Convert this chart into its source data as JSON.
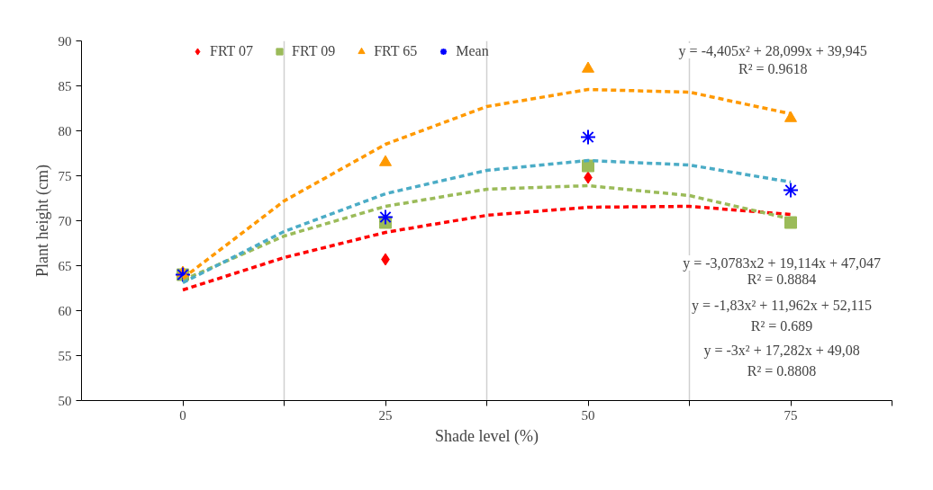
{
  "chart_data": {
    "type": "scatter",
    "xlabel": "Shade level (%)",
    "ylabel": "Plant height (cm)",
    "xlim": [
      -12.5,
      87.5
    ],
    "xticks": [
      0,
      {
        "value": 12.5,
        "label": null
      },
      25,
      {
        "value": 37.5,
        "label": null
      },
      50,
      {
        "value": 62.5,
        "label": null
      },
      75,
      {
        "value": 87.5,
        "label": null
      }
    ],
    "ylim": [
      50,
      90
    ],
    "yticks": [
      50,
      55,
      60,
      65,
      70,
      75,
      80,
      85,
      90
    ],
    "grid": "x",
    "legend": "top",
    "x": [
      0,
      25,
      50,
      75
    ],
    "series": [
      {
        "name": "FRT 07",
        "color": "#ff0000",
        "marker": "diamond",
        "values": [
          null,
          65.7,
          74.8,
          null
        ]
      },
      {
        "name": "FRT 09",
        "color": "#9bbb59",
        "marker": "square",
        "values": [
          64.0,
          69.8,
          76.1,
          69.8
        ]
      },
      {
        "name": "FRT 65",
        "color": "#ff9900",
        "marker": "triangle",
        "values": [
          64.2,
          76.5,
          86.9,
          81.4
        ]
      },
      {
        "name": "Mean",
        "color": "#0000ff",
        "marker": "cross",
        "values": [
          64.0,
          70.4,
          79.3,
          73.4
        ]
      },
      {
        "type": "line",
        "color": "#ff0000",
        "line_style": "dashed",
        "x": [
          0,
          12.5,
          25,
          37.5,
          50,
          62.5,
          75
        ],
        "values": [
          62.3,
          65.9,
          68.7,
          70.6,
          71.5,
          71.6,
          70.7
        ]
      },
      {
        "type": "line",
        "color": "#9bbb59",
        "line_style": "dashed",
        "x": [
          0,
          12.5,
          25,
          37.5,
          50,
          62.5,
          75
        ],
        "values": [
          63.4,
          68.3,
          71.6,
          73.5,
          73.9,
          72.8,
          70.2
        ]
      },
      {
        "type": "line",
        "color": "#4bacc6",
        "line_style": "dashed",
        "x": [
          0,
          12.5,
          25,
          37.5,
          50,
          62.5,
          75
        ],
        "values": [
          63.1,
          68.8,
          73.0,
          75.6,
          76.7,
          76.2,
          74.3
        ]
      },
      {
        "type": "line",
        "color": "#ff9900",
        "line_style": "dashed",
        "x": [
          0,
          12.5,
          25,
          37.5,
          50,
          62.5,
          75
        ],
        "values": [
          63.6,
          72.2,
          78.5,
          82.7,
          84.6,
          84.3,
          81.9
        ]
      }
    ],
    "annotations": [
      "y = -4,405x² + 28,099x + 39,945",
      "R² = 0.9618",
      "y = -3,0783x2 + 19,114x + 47,047",
      "R² = 0.8884",
      "y = -1,83x² + 11,962x + 52,115",
      "R² = 0.689",
      "y = -3x² + 17,282x + 49,08",
      "R² = 0.8808"
    ]
  }
}
